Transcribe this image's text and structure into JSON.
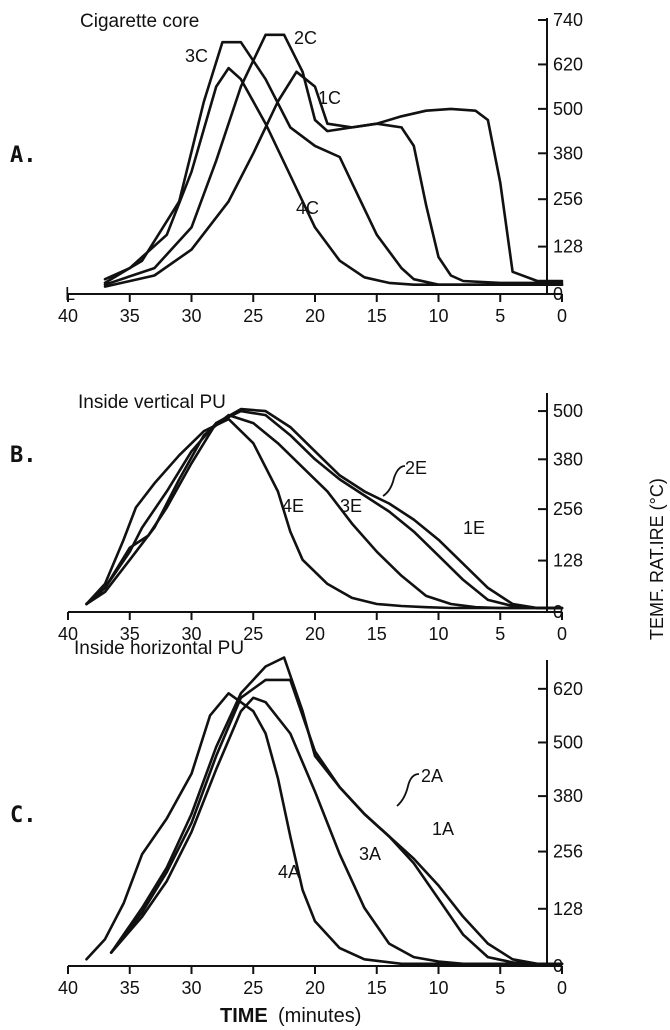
{
  "chart_data": [
    {
      "type": "line",
      "panel_label": "A.",
      "title": "Cigarette core",
      "x_ticks": [
        "40",
        "35",
        "30",
        "25",
        "20",
        "15",
        "10",
        "5",
        "0"
      ],
      "y_ticks": [
        "0",
        "128",
        "256",
        "380",
        "500",
        "620",
        "740"
      ],
      "xlim": [
        40,
        0
      ],
      "ylim": [
        0,
        740
      ],
      "x_origin_mark": "L",
      "series": [
        {
          "name": "1C",
          "x": [
            37,
            33,
            30,
            27,
            25,
            23,
            21.5,
            20,
            19,
            17,
            15,
            13,
            11,
            9,
            7,
            6,
            5,
            4,
            2,
            0
          ],
          "y": [
            20,
            50,
            120,
            250,
            380,
            520,
            600,
            560,
            460,
            450,
            460,
            480,
            495,
            500,
            495,
            470,
            300,
            60,
            35,
            35
          ]
        },
        {
          "name": "2C",
          "x": [
            37,
            33,
            30,
            28,
            26,
            24,
            22.5,
            21,
            20,
            19,
            17,
            15,
            13,
            12,
            11,
            10,
            9,
            8,
            5,
            0
          ],
          "y": [
            25,
            70,
            180,
            360,
            560,
            700,
            700,
            600,
            470,
            440,
            450,
            460,
            450,
            400,
            240,
            100,
            50,
            35,
            30,
            30
          ]
        },
        {
          "name": "3C",
          "x": [
            37,
            34,
            31,
            29,
            27.5,
            26,
            24,
            22,
            20,
            18,
            17,
            15,
            13,
            12,
            10,
            7,
            0
          ],
          "y": [
            30,
            90,
            250,
            520,
            680,
            680,
            580,
            450,
            400,
            370,
            300,
            160,
            70,
            40,
            25,
            25,
            25
          ]
        },
        {
          "name": "4C",
          "x": [
            37,
            35,
            32,
            30,
            28,
            27,
            26,
            24,
            22,
            20,
            18,
            16,
            14,
            12,
            10,
            6,
            0
          ],
          "y": [
            40,
            70,
            160,
            330,
            560,
            610,
            580,
            460,
            320,
            180,
            90,
            45,
            30,
            25,
            25,
            25,
            25
          ]
        }
      ]
    },
    {
      "type": "line",
      "panel_label": "B.",
      "title": "Inside vertical PU",
      "x_ticks": [
        "40",
        "35",
        "30",
        "25",
        "20",
        "15",
        "10",
        "5",
        "0"
      ],
      "y_ticks": [
        "0",
        "128",
        "256",
        "380",
        "500"
      ],
      "xlim": [
        40,
        0
      ],
      "ylim": [
        0,
        540
      ],
      "series": [
        {
          "name": "1E",
          "x": [
            38.5,
            37,
            35,
            34,
            32,
            30,
            28,
            26,
            24,
            22,
            20,
            18,
            16,
            14,
            12,
            10,
            8,
            6,
            4,
            2,
            0
          ],
          "y": [
            20,
            60,
            150,
            210,
            300,
            400,
            470,
            505,
            500,
            460,
            400,
            340,
            300,
            270,
            230,
            180,
            120,
            60,
            20,
            10,
            10
          ]
        },
        {
          "name": "2E",
          "x": [
            38.5,
            37,
            35,
            33.5,
            32,
            30,
            28,
            26,
            24,
            22,
            20,
            18,
            16,
            14,
            12,
            10,
            8,
            6,
            4,
            2,
            0
          ],
          "y": [
            20,
            60,
            160,
            190,
            260,
            370,
            470,
            500,
            490,
            440,
            380,
            330,
            290,
            250,
            200,
            140,
            80,
            30,
            15,
            10,
            10
          ]
        },
        {
          "name": "3E",
          "x": [
            38.5,
            37,
            35,
            33,
            31,
            29,
            27,
            25,
            23,
            21,
            19,
            17,
            15,
            13,
            11,
            9,
            7,
            5,
            3,
            0
          ],
          "y": [
            20,
            50,
            130,
            210,
            330,
            440,
            490,
            470,
            420,
            360,
            300,
            220,
            150,
            90,
            40,
            20,
            12,
            10,
            10,
            10
          ]
        },
        {
          "name": "4E",
          "x": [
            38.5,
            37,
            35.5,
            34.5,
            33,
            31,
            29,
            27,
            25,
            23,
            22,
            21,
            19,
            17,
            15,
            13,
            11,
            9,
            6,
            3,
            0
          ],
          "y": [
            20,
            70,
            180,
            260,
            320,
            390,
            450,
            480,
            420,
            300,
            200,
            130,
            70,
            35,
            20,
            15,
            12,
            10,
            10,
            10,
            10
          ]
        }
      ]
    },
    {
      "type": "line",
      "panel_label": "C.",
      "title": "Inside horizontal PU",
      "x_ticks": [
        "40",
        "35",
        "30",
        "25",
        "20",
        "15",
        "10",
        "5",
        "0"
      ],
      "y_ticks": [
        "0",
        "128",
        "256",
        "380",
        "500",
        "620"
      ],
      "xlim": [
        40,
        0
      ],
      "ylim": [
        0,
        680
      ],
      "xlabel": "TIME",
      "xlabel_unit": "(minutes)",
      "ylabel": "TEMF. RAT.IRE (°C)",
      "series": [
        {
          "name": "1A",
          "x": [
            36.5,
            34,
            32,
            30,
            28,
            26,
            24,
            22.5,
            21,
            20,
            18,
            16,
            14,
            12,
            10,
            8,
            6,
            4,
            2,
            0
          ],
          "y": [
            30,
            130,
            220,
            340,
            490,
            610,
            670,
            690,
            570,
            470,
            400,
            340,
            290,
            240,
            180,
            110,
            50,
            15,
            5,
            5
          ]
        },
        {
          "name": "2A",
          "x": [
            36.5,
            34,
            32,
            30,
            28,
            26,
            24,
            22,
            20,
            18,
            16,
            14,
            12,
            10,
            8,
            6,
            4,
            2,
            0
          ],
          "y": [
            30,
            120,
            210,
            320,
            470,
            600,
            640,
            640,
            480,
            400,
            340,
            290,
            230,
            150,
            70,
            20,
            8,
            5,
            5
          ]
        },
        {
          "name": "3A",
          "x": [
            36.5,
            34,
            32,
            30,
            28,
            26,
            25,
            24,
            22,
            20,
            18,
            16,
            14,
            12,
            10,
            8,
            6,
            4,
            0
          ],
          "y": [
            30,
            110,
            190,
            300,
            440,
            570,
            600,
            590,
            520,
            390,
            250,
            130,
            50,
            20,
            10,
            5,
            5,
            5,
            5
          ]
        },
        {
          "name": "4A",
          "x": [
            38.5,
            37,
            35.5,
            34,
            32,
            30,
            28.5,
            27,
            26,
            25,
            24,
            23,
            22,
            21,
            20,
            18,
            16,
            13,
            10,
            5,
            0
          ],
          "y": [
            15,
            60,
            140,
            250,
            330,
            430,
            560,
            610,
            590,
            570,
            520,
            420,
            290,
            170,
            100,
            40,
            15,
            5,
            5,
            5,
            5
          ]
        }
      ]
    }
  ]
}
